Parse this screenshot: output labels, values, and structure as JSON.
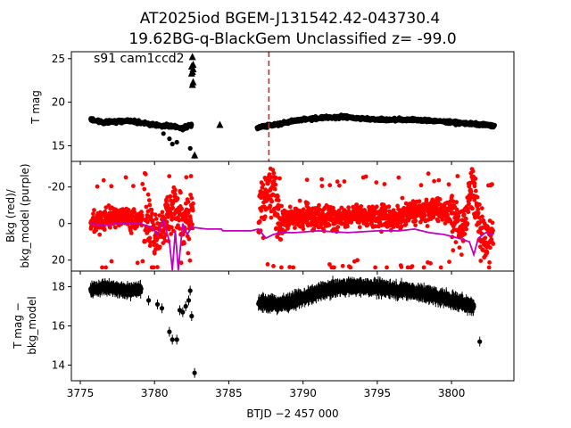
{
  "figure": {
    "title_line1": "AT2025iod  BGEM-J131542.42-043730.4",
    "title_line2": "19.62BG-q-BlackGem Unclassified z= -99.0",
    "annotation": "s91 cam1ccd2",
    "xlabel": "BTJD −2 457 000"
  },
  "chart_data": [
    {
      "type": "scatter",
      "panel": "top",
      "ylabel": "T mag",
      "xlim": [
        3774.4,
        3804.2
      ],
      "ylim": [
        25.8,
        13.2
      ],
      "y_inverted": true,
      "xticks": [
        3775,
        3780,
        3785,
        3790,
        3795,
        3800
      ],
      "yticks": [
        15,
        20,
        25
      ],
      "series": [
        {
          "marker": "circle",
          "color": "#000000",
          "segments": [
            {
              "x_start": 3775.7,
              "x_end": 3779.2,
              "y": [
                18.0,
                17.7,
                17.8,
                17.9,
                17.6
              ]
            },
            {
              "x_start": 3779.3,
              "x_end": 3782.5,
              "y": [
                17.6,
                17.4,
                17.3,
                17.2,
                17.0,
                17.4
              ]
            },
            {
              "x_start": 3786.9,
              "x_end": 3802.9,
              "y": [
                17.1,
                17.5,
                18.0,
                18.2,
                18.3,
                18.1,
                18.0,
                18.0,
                17.9,
                17.7,
                17.5,
                17.3
              ]
            }
          ],
          "outliers": [
            {
              "x": 3781.2,
              "y": 15.2
            },
            {
              "x": 3781.5,
              "y": 15.4
            },
            {
              "x": 3781.0,
              "y": 15.8
            },
            {
              "x": 3782.4,
              "y": 14.7
            },
            {
              "x": 3782.7,
              "y": 13.8
            },
            {
              "x": 3781.9,
              "y": 16.8
            },
            {
              "x": 3782.2,
              "y": 17.2
            },
            {
              "x": 3780.6,
              "y": 16.4
            }
          ]
        },
        {
          "marker": "triangle",
          "color": "#000000",
          "points": [
            {
              "x": 3782.55,
              "y": 22.0
            },
            {
              "x": 3782.6,
              "y": 22.3
            },
            {
              "x": 3782.5,
              "y": 23.3
            },
            {
              "x": 3782.55,
              "y": 23.5
            },
            {
              "x": 3782.6,
              "y": 23.8
            },
            {
              "x": 3782.5,
              "y": 24.1
            },
            {
              "x": 3782.6,
              "y": 24.3
            },
            {
              "x": 3782.55,
              "y": 25.2
            },
            {
              "x": 3784.4,
              "y": 17.4
            },
            {
              "x": 3782.7,
              "y": 13.9
            }
          ]
        }
      ],
      "vline": {
        "x": 3787.7,
        "color": "#d62728",
        "style": "dashed"
      }
    },
    {
      "type": "scatter",
      "panel": "middle",
      "ylabel_line1": "Bkg (red)/",
      "ylabel_line2": "bkg_model (purple)",
      "xlim": [
        3774.4,
        3804.2
      ],
      "ylim": [
        -34,
        26
      ],
      "yticks": [
        20,
        0,
        -20
      ],
      "series": [
        {
          "name": "Bkg",
          "color": "#ff0000",
          "segments": [
            {
              "x_start": 3775.7,
              "x_end": 3779.2,
              "center": [
                -1,
                -2,
                -4,
                -3,
                -2,
                -3
              ],
              "spread": 6
            },
            {
              "x_start": 3779.3,
              "x_end": 3782.6,
              "center": [
                0,
                4,
                8,
                -5,
                -10,
                2,
                -8
              ],
              "spread": 16
            },
            {
              "x_start": 3787.0,
              "x_end": 3788.6,
              "center": [
                0,
                -15,
                -20,
                -10,
                5
              ],
              "spread": 18
            },
            {
              "x_start": 3788.6,
              "x_end": 3800.0,
              "center": [
                -2,
                -4,
                -3,
                -2,
                -5,
                -4,
                -3,
                -6,
                -8,
                -6
              ],
              "spread": 7
            },
            {
              "x_start": 3800.0,
              "x_end": 3802.8,
              "center": [
                -5,
                5,
                -20,
                10,
                5
              ],
              "spread": 15
            }
          ]
        },
        {
          "name": "bkg_model",
          "color": "#bf00bf",
          "points": [
            [
              3775.7,
              0
            ],
            [
              3776.5,
              1
            ],
            [
              3777.5,
              0
            ],
            [
              3779.0,
              0
            ],
            [
              3779.8,
              2
            ],
            [
              3780.2,
              6
            ],
            [
              3780.6,
              -2
            ],
            [
              3781.0,
              10
            ],
            [
              3781.2,
              28
            ],
            [
              3781.4,
              4
            ],
            [
              3781.6,
              26
            ],
            [
              3781.9,
              0
            ],
            [
              3782.2,
              6
            ],
            [
              3782.5,
              2
            ],
            [
              3783.5,
              3
            ],
            [
              3784.5,
              3
            ],
            [
              3784.6,
              4
            ],
            [
              3786.5,
              4
            ],
            [
              3787.0,
              3
            ],
            [
              3787.5,
              8
            ],
            [
              3788.0,
              6
            ],
            [
              3788.5,
              5
            ],
            [
              3789.5,
              5
            ],
            [
              3791.0,
              4
            ],
            [
              3793.0,
              5
            ],
            [
              3795.0,
              4
            ],
            [
              3796.5,
              4
            ],
            [
              3797.5,
              3
            ],
            [
              3798.5,
              5
            ],
            [
              3799.5,
              6
            ],
            [
              3800.5,
              8
            ],
            [
              3801.2,
              10
            ],
            [
              3801.5,
              17
            ],
            [
              3801.8,
              8
            ],
            [
              3802.3,
              5
            ],
            [
              3802.8,
              6
            ]
          ]
        }
      ]
    },
    {
      "type": "scatter",
      "panel": "bottom",
      "ylabel_line1": "T mag −",
      "ylabel_line2": "bkg_model",
      "xlim": [
        3774.4,
        3804.2
      ],
      "ylim": [
        18.8,
        13.2
      ],
      "y_inverted": true,
      "yticks": [
        14,
        16,
        18
      ],
      "series": [
        {
          "marker": "circle-errorbar",
          "color": "#000000",
          "segments": [
            {
              "x_start": 3775.7,
              "x_end": 3779.1,
              "y": [
                17.8,
                18.0,
                17.9,
                17.8,
                17.9
              ],
              "err": 0.3
            },
            {
              "x_start": 3787.0,
              "x_end": 3801.5,
              "y": [
                17.2,
                17.1,
                17.4,
                17.8,
                18.0,
                18.0,
                17.9,
                17.8,
                17.6,
                17.3,
                17.0
              ],
              "err": 0.35
            }
          ],
          "outliers": [
            {
              "x": 3779.6,
              "y": 17.3
            },
            {
              "x": 3780.2,
              "y": 17.1
            },
            {
              "x": 3780.5,
              "y": 16.9
            },
            {
              "x": 3781.2,
              "y": 15.3
            },
            {
              "x": 3781.5,
              "y": 15.3
            },
            {
              "x": 3781.0,
              "y": 15.7
            },
            {
              "x": 3781.7,
              "y": 16.8
            },
            {
              "x": 3781.9,
              "y": 16.7
            },
            {
              "x": 3782.1,
              "y": 17.0
            },
            {
              "x": 3782.3,
              "y": 17.3
            },
            {
              "x": 3782.4,
              "y": 17.8
            },
            {
              "x": 3782.5,
              "y": 16.5
            },
            {
              "x": 3782.7,
              "y": 13.6
            },
            {
              "x": 3801.9,
              "y": 15.2
            }
          ]
        }
      ]
    }
  ]
}
